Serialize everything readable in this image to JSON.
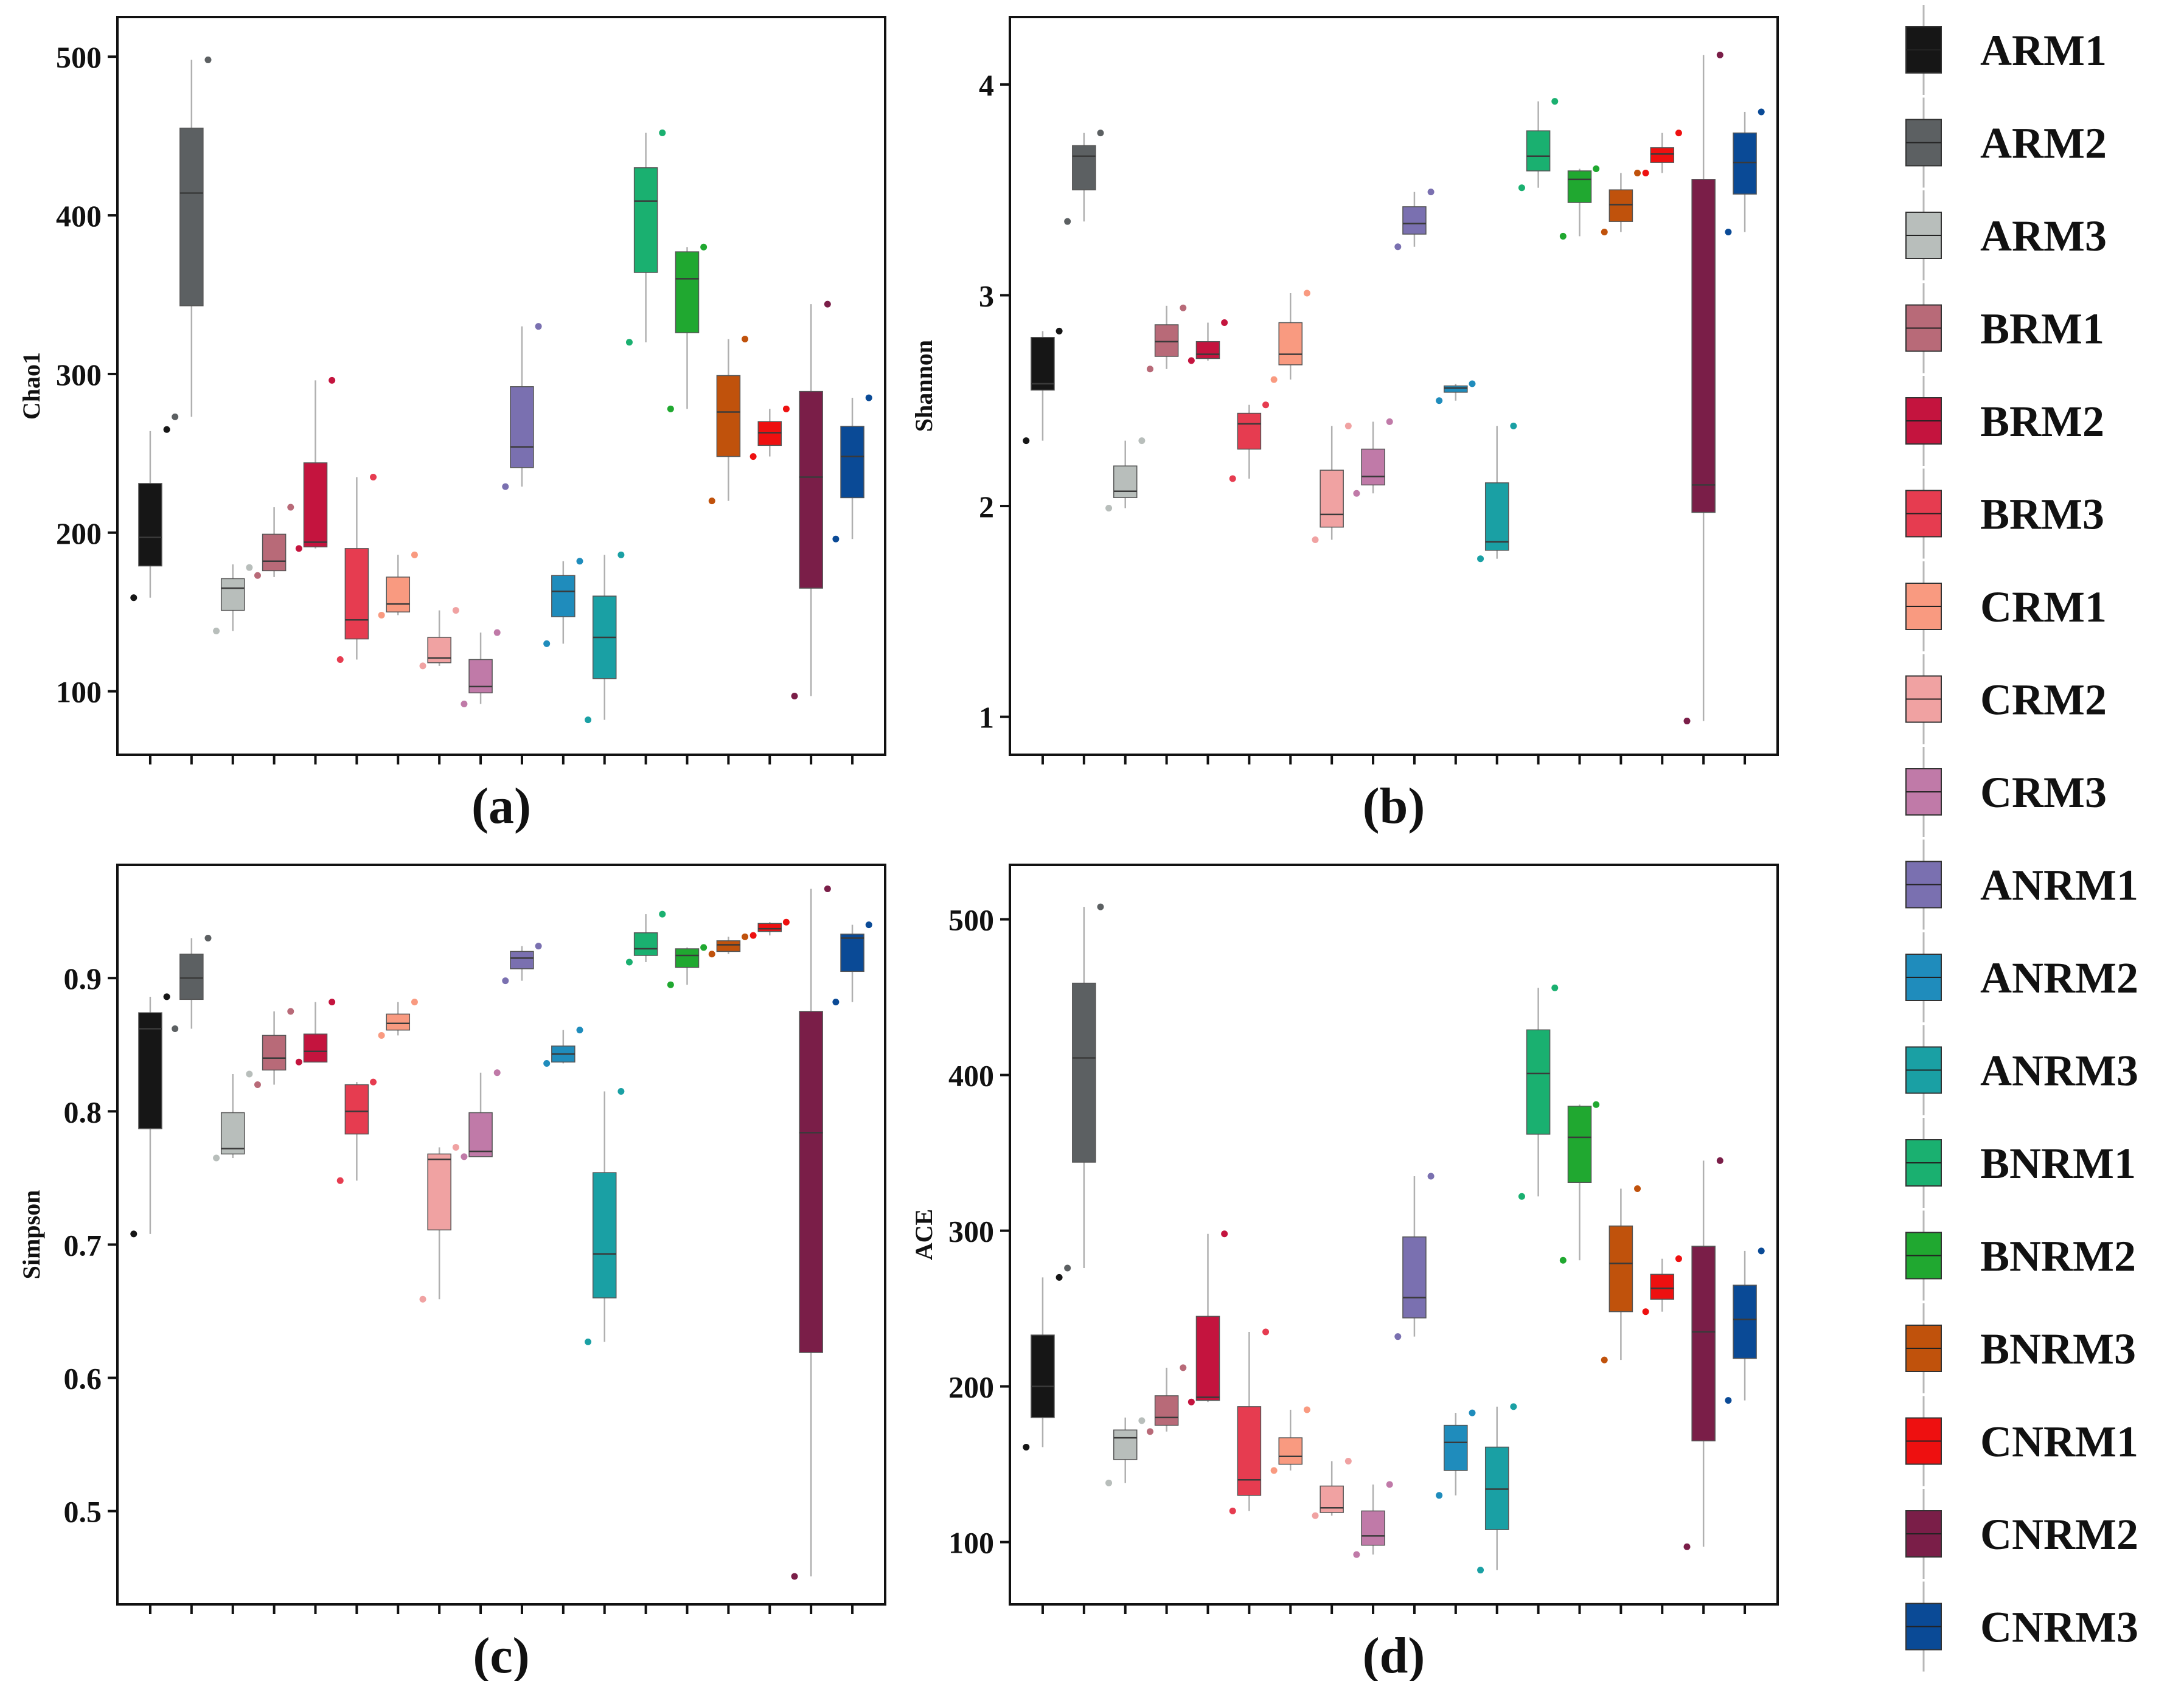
{
  "legend": {
    "title": "",
    "items": [
      {
        "name": "ARM1",
        "color": "#161616"
      },
      {
        "name": "ARM2",
        "color": "#5c6062"
      },
      {
        "name": "ARM3",
        "color": "#b8bebb"
      },
      {
        "name": "BRM1",
        "color": "#b86a78"
      },
      {
        "name": "BRM2",
        "color": "#c4143e"
      },
      {
        "name": "BRM3",
        "color": "#e63c50"
      },
      {
        "name": "CRM1",
        "color": "#f99a80"
      },
      {
        "name": "CRM2",
        "color": "#f0a2a2"
      },
      {
        "name": "CRM3",
        "color": "#c07aa8"
      },
      {
        "name": "ANRM1",
        "color": "#7a70b0"
      },
      {
        "name": "ANRM2",
        "color": "#1f8cbc"
      },
      {
        "name": "ANRM3",
        "color": "#1aa0a4"
      },
      {
        "name": "BNRM1",
        "color": "#1ab070"
      },
      {
        "name": "BNRM2",
        "color": "#20a830"
      },
      {
        "name": "BNRM3",
        "color": "#c0520c"
      },
      {
        "name": "CNRM1",
        "color": "#ee1010"
      },
      {
        "name": "CNRM2",
        "color": "#7a1e48"
      },
      {
        "name": "CNRM3",
        "color": "#0a4a96"
      }
    ]
  },
  "chart_data": [
    {
      "type": "box",
      "panel_label": "(a)",
      "ylabel": "Chao1",
      "ylim": [
        60,
        525
      ],
      "yticks": [
        100,
        200,
        300,
        400,
        500
      ],
      "categories": [
        "ARM1",
        "ARM2",
        "ARM3",
        "BRM1",
        "BRM2",
        "BRM3",
        "CRM1",
        "CRM2",
        "CRM3",
        "ANRM1",
        "ANRM2",
        "ANRM3",
        "BNRM1",
        "BNRM2",
        "BNRM3",
        "CNRM1",
        "CNRM2",
        "CNRM3"
      ],
      "boxes": [
        {
          "q1": 179,
          "median": 197,
          "q3": 231,
          "wlo": 159,
          "whi": 264,
          "points": [
            265,
            159
          ]
        },
        {
          "q1": 343,
          "median": 414,
          "q3": 455,
          "wlo": 273,
          "whi": 498,
          "points": [
            498,
            273
          ]
        },
        {
          "q1": 151,
          "median": 165,
          "q3": 171,
          "wlo": 138,
          "whi": 180,
          "points": [
            178,
            138
          ]
        },
        {
          "q1": 176,
          "median": 182,
          "q3": 199,
          "wlo": 172,
          "whi": 216,
          "points": [
            216,
            173
          ]
        },
        {
          "q1": 191,
          "median": 194,
          "q3": 244,
          "wlo": 190,
          "whi": 296,
          "points": [
            296,
            190
          ]
        },
        {
          "q1": 133,
          "median": 145,
          "q3": 190,
          "wlo": 120,
          "whi": 235,
          "points": [
            235,
            120
          ]
        },
        {
          "q1": 150,
          "median": 155,
          "q3": 172,
          "wlo": 148,
          "whi": 186,
          "points": [
            186,
            148
          ]
        },
        {
          "q1": 118,
          "median": 121,
          "q3": 134,
          "wlo": 116,
          "whi": 151,
          "points": [
            151,
            116
          ]
        },
        {
          "q1": 99,
          "median": 103,
          "q3": 120,
          "wlo": 92,
          "whi": 137,
          "points": [
            137,
            92
          ]
        },
        {
          "q1": 241,
          "median": 254,
          "q3": 292,
          "wlo": 229,
          "whi": 330,
          "points": [
            330,
            229
          ]
        },
        {
          "q1": 147,
          "median": 163,
          "q3": 173,
          "wlo": 130,
          "whi": 182,
          "points": [
            182,
            130
          ]
        },
        {
          "q1": 108,
          "median": 134,
          "q3": 160,
          "wlo": 82,
          "whi": 186,
          "points": [
            186,
            82
          ]
        },
        {
          "q1": 364,
          "median": 409,
          "q3": 430,
          "wlo": 320,
          "whi": 452,
          "points": [
            452,
            320
          ]
        },
        {
          "q1": 326,
          "median": 360,
          "q3": 377,
          "wlo": 278,
          "whi": 380,
          "points": [
            380,
            278
          ]
        },
        {
          "q1": 248,
          "median": 276,
          "q3": 299,
          "wlo": 220,
          "whi": 322,
          "points": [
            322,
            220
          ]
        },
        {
          "q1": 255,
          "median": 263,
          "q3": 270,
          "wlo": 248,
          "whi": 278,
          "points": [
            278,
            248
          ]
        },
        {
          "q1": 165,
          "median": 235,
          "q3": 289,
          "wlo": 97,
          "whi": 344,
          "points": [
            344,
            97
          ]
        },
        {
          "q1": 222,
          "median": 248,
          "q3": 267,
          "wlo": 196,
          "whi": 285,
          "points": [
            285,
            196
          ]
        }
      ]
    },
    {
      "type": "box",
      "panel_label": "(b)",
      "ylabel": "Shannon",
      "ylim": [
        0.82,
        4.32
      ],
      "yticks": [
        1,
        2,
        3,
        4
      ],
      "categories": [
        "ARM1",
        "ARM2",
        "ARM3",
        "BRM1",
        "BRM2",
        "BRM3",
        "CRM1",
        "CRM2",
        "CRM3",
        "ANRM1",
        "ANRM2",
        "ANRM3",
        "BNRM1",
        "BNRM2",
        "BNRM3",
        "CNRM1",
        "CNRM2",
        "CNRM3"
      ],
      "boxes": [
        {
          "q1": 2.55,
          "median": 2.58,
          "q3": 2.8,
          "wlo": 2.31,
          "whi": 2.83,
          "points": [
            2.83,
            2.31
          ]
        },
        {
          "q1": 3.5,
          "median": 3.66,
          "q3": 3.71,
          "wlo": 3.35,
          "whi": 3.77,
          "points": [
            3.77,
            3.35
          ]
        },
        {
          "q1": 2.04,
          "median": 2.07,
          "q3": 2.19,
          "wlo": 1.99,
          "whi": 2.31,
          "points": [
            2.31,
            1.99
          ]
        },
        {
          "q1": 2.71,
          "median": 2.78,
          "q3": 2.86,
          "wlo": 2.65,
          "whi": 2.95,
          "points": [
            2.94,
            2.65
          ]
        },
        {
          "q1": 2.7,
          "median": 2.72,
          "q3": 2.78,
          "wlo": 2.69,
          "whi": 2.87,
          "points": [
            2.87,
            2.69
          ]
        },
        {
          "q1": 2.27,
          "median": 2.39,
          "q3": 2.44,
          "wlo": 2.13,
          "whi": 2.48,
          "points": [
            2.48,
            2.13
          ]
        },
        {
          "q1": 2.67,
          "median": 2.72,
          "q3": 2.87,
          "wlo": 2.6,
          "whi": 3.01,
          "points": [
            3.01,
            2.6
          ]
        },
        {
          "q1": 1.9,
          "median": 1.96,
          "q3": 2.17,
          "wlo": 1.84,
          "whi": 2.38,
          "points": [
            2.38,
            1.84
          ]
        },
        {
          "q1": 2.1,
          "median": 2.14,
          "q3": 2.27,
          "wlo": 2.06,
          "whi": 2.4,
          "points": [
            2.4,
            2.06
          ]
        },
        {
          "q1": 3.29,
          "median": 3.34,
          "q3": 3.42,
          "wlo": 3.23,
          "whi": 3.49,
          "points": [
            3.49,
            3.23
          ]
        },
        {
          "q1": 2.54,
          "median": 2.56,
          "q3": 2.57,
          "wlo": 2.5,
          "whi": 2.58,
          "points": [
            2.58,
            2.5
          ]
        },
        {
          "q1": 1.79,
          "median": 1.83,
          "q3": 2.11,
          "wlo": 1.75,
          "whi": 2.38,
          "points": [
            2.38,
            1.75
          ]
        },
        {
          "q1": 3.59,
          "median": 3.66,
          "q3": 3.78,
          "wlo": 3.51,
          "whi": 3.92,
          "points": [
            3.92,
            3.51
          ]
        },
        {
          "q1": 3.44,
          "median": 3.55,
          "q3": 3.59,
          "wlo": 3.28,
          "whi": 3.6,
          "points": [
            3.6,
            3.28
          ]
        },
        {
          "q1": 3.35,
          "median": 3.43,
          "q3": 3.5,
          "wlo": 3.3,
          "whi": 3.58,
          "points": [
            3.58,
            3.3
          ]
        },
        {
          "q1": 3.63,
          "median": 3.67,
          "q3": 3.7,
          "wlo": 3.58,
          "whi": 3.77,
          "points": [
            3.77,
            3.58
          ]
        },
        {
          "q1": 1.97,
          "median": 2.1,
          "q3": 3.55,
          "wlo": 0.98,
          "whi": 4.14,
          "points": [
            4.14,
            0.98
          ]
        },
        {
          "q1": 3.48,
          "median": 3.63,
          "q3": 3.77,
          "wlo": 3.3,
          "whi": 3.87,
          "points": [
            3.87,
            3.3
          ]
        }
      ]
    },
    {
      "type": "box",
      "panel_label": "(c)",
      "ylabel": "Simpson",
      "ylim": [
        0.43,
        0.985
      ],
      "yticks": [
        0.5,
        0.6,
        0.7,
        0.8,
        0.9
      ],
      "categories": [
        "ARM1",
        "ARM2",
        "ARM3",
        "BRM1",
        "BRM2",
        "BRM3",
        "CRM1",
        "CRM2",
        "CRM3",
        "ANRM1",
        "ANRM2",
        "ANRM3",
        "BNRM1",
        "BNRM2",
        "BNRM3",
        "CNRM1",
        "CNRM2",
        "CNRM3"
      ],
      "boxes": [
        {
          "q1": 0.787,
          "median": 0.862,
          "q3": 0.874,
          "wlo": 0.708,
          "whi": 0.886,
          "points": [
            0.886,
            0.708
          ]
        },
        {
          "q1": 0.884,
          "median": 0.9,
          "q3": 0.918,
          "wlo": 0.862,
          "whi": 0.93,
          "points": [
            0.93,
            0.862
          ]
        },
        {
          "q1": 0.768,
          "median": 0.772,
          "q3": 0.799,
          "wlo": 0.765,
          "whi": 0.828,
          "points": [
            0.828,
            0.765
          ]
        },
        {
          "q1": 0.831,
          "median": 0.84,
          "q3": 0.857,
          "wlo": 0.82,
          "whi": 0.875,
          "points": [
            0.875,
            0.82
          ]
        },
        {
          "q1": 0.837,
          "median": 0.845,
          "q3": 0.858,
          "wlo": 0.837,
          "whi": 0.882,
          "points": [
            0.882,
            0.837
          ]
        },
        {
          "q1": 0.783,
          "median": 0.8,
          "q3": 0.82,
          "wlo": 0.748,
          "whi": 0.822,
          "points": [
            0.822,
            0.748
          ]
        },
        {
          "q1": 0.861,
          "median": 0.866,
          "q3": 0.873,
          "wlo": 0.857,
          "whi": 0.882,
          "points": [
            0.882,
            0.857
          ]
        },
        {
          "q1": 0.711,
          "median": 0.764,
          "q3": 0.768,
          "wlo": 0.659,
          "whi": 0.773,
          "points": [
            0.773,
            0.659
          ]
        },
        {
          "q1": 0.766,
          "median": 0.77,
          "q3": 0.799,
          "wlo": 0.766,
          "whi": 0.829,
          "points": [
            0.829,
            0.766
          ]
        },
        {
          "q1": 0.907,
          "median": 0.915,
          "q3": 0.92,
          "wlo": 0.898,
          "whi": 0.924,
          "points": [
            0.924,
            0.898
          ]
        },
        {
          "q1": 0.837,
          "median": 0.843,
          "q3": 0.849,
          "wlo": 0.836,
          "whi": 0.861,
          "points": [
            0.861,
            0.836
          ]
        },
        {
          "q1": 0.66,
          "median": 0.693,
          "q3": 0.754,
          "wlo": 0.627,
          "whi": 0.815,
          "points": [
            0.815,
            0.627
          ]
        },
        {
          "q1": 0.917,
          "median": 0.922,
          "q3": 0.934,
          "wlo": 0.912,
          "whi": 0.948,
          "points": [
            0.948,
            0.912
          ]
        },
        {
          "q1": 0.908,
          "median": 0.917,
          "q3": 0.922,
          "wlo": 0.895,
          "whi": 0.923,
          "points": [
            0.923,
            0.895
          ]
        },
        {
          "q1": 0.92,
          "median": 0.925,
          "q3": 0.928,
          "wlo": 0.918,
          "whi": 0.931,
          "points": [
            0.931,
            0.918
          ]
        },
        {
          "q1": 0.935,
          "median": 0.937,
          "q3": 0.941,
          "wlo": 0.932,
          "whi": 0.942,
          "points": [
            0.942,
            0.932
          ]
        },
        {
          "q1": 0.619,
          "median": 0.784,
          "q3": 0.875,
          "wlo": 0.451,
          "whi": 0.967,
          "points": [
            0.967,
            0.451
          ]
        },
        {
          "q1": 0.905,
          "median": 0.93,
          "q3": 0.933,
          "wlo": 0.882,
          "whi": 0.94,
          "points": [
            0.94,
            0.882
          ]
        }
      ]
    },
    {
      "type": "box",
      "panel_label": "(d)",
      "ylabel": "ACE",
      "ylim": [
        60,
        535
      ],
      "yticks": [
        100,
        200,
        300,
        400,
        500
      ],
      "categories": [
        "ARM1",
        "ARM2",
        "ARM3",
        "BRM1",
        "BRM2",
        "BRM3",
        "CRM1",
        "CRM2",
        "CRM3",
        "ANRM1",
        "ANRM2",
        "ANRM3",
        "BNRM1",
        "BNRM2",
        "BNRM3",
        "CNRM1",
        "CNRM2",
        "CNRM3"
      ],
      "boxes": [
        {
          "q1": 180,
          "median": 200,
          "q3": 233,
          "wlo": 161,
          "whi": 270,
          "points": [
            270,
            161
          ]
        },
        {
          "q1": 344,
          "median": 411,
          "q3": 459,
          "wlo": 276,
          "whi": 508,
          "points": [
            508,
            276
          ]
        },
        {
          "q1": 153,
          "median": 167,
          "q3": 172,
          "wlo": 138,
          "whi": 180,
          "points": [
            178,
            138
          ]
        },
        {
          "q1": 175,
          "median": 180,
          "q3": 194,
          "wlo": 171,
          "whi": 212,
          "points": [
            212,
            171
          ]
        },
        {
          "q1": 191,
          "median": 193,
          "q3": 245,
          "wlo": 190,
          "whi": 298,
          "points": [
            298,
            190
          ]
        },
        {
          "q1": 130,
          "median": 140,
          "q3": 187,
          "wlo": 120,
          "whi": 235,
          "points": [
            235,
            120
          ]
        },
        {
          "q1": 150,
          "median": 155,
          "q3": 167,
          "wlo": 146,
          "whi": 185,
          "points": [
            185,
            146
          ]
        },
        {
          "q1": 119,
          "median": 122,
          "q3": 136,
          "wlo": 117,
          "whi": 152,
          "points": [
            152,
            117
          ]
        },
        {
          "q1": 98,
          "median": 104,
          "q3": 120,
          "wlo": 92,
          "whi": 137,
          "points": [
            137,
            92
          ]
        },
        {
          "q1": 244,
          "median": 257,
          "q3": 296,
          "wlo": 232,
          "whi": 335,
          "points": [
            335,
            232
          ]
        },
        {
          "q1": 146,
          "median": 164,
          "q3": 175,
          "wlo": 130,
          "whi": 183,
          "points": [
            183,
            130
          ]
        },
        {
          "q1": 108,
          "median": 134,
          "q3": 161,
          "wlo": 82,
          "whi": 187,
          "points": [
            187,
            82
          ]
        },
        {
          "q1": 362,
          "median": 401,
          "q3": 429,
          "wlo": 322,
          "whi": 456,
          "points": [
            456,
            322
          ]
        },
        {
          "q1": 331,
          "median": 360,
          "q3": 380,
          "wlo": 281,
          "whi": 381,
          "points": [
            381,
            281
          ]
        },
        {
          "q1": 248,
          "median": 279,
          "q3": 303,
          "wlo": 217,
          "whi": 327,
          "points": [
            327,
            217
          ]
        },
        {
          "q1": 256,
          "median": 263,
          "q3": 272,
          "wlo": 248,
          "whi": 282,
          "points": [
            282,
            248
          ]
        },
        {
          "q1": 165,
          "median": 235,
          "q3": 290,
          "wlo": 97,
          "whi": 345,
          "points": [
            345,
            97
          ]
        },
        {
          "q1": 218,
          "median": 243,
          "q3": 265,
          "wlo": 191,
          "whi": 287,
          "points": [
            287,
            191
          ]
        }
      ]
    }
  ]
}
